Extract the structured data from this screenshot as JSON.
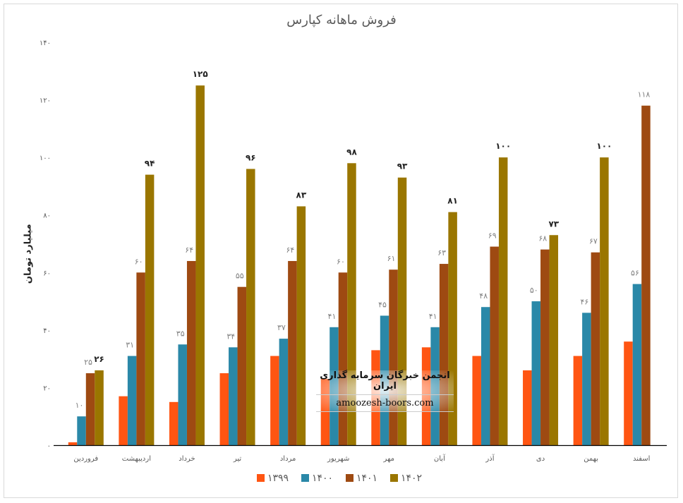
{
  "chart_data": {
    "type": "bar",
    "title": "فروش ماهانه کپارس",
    "xlabel": "",
    "ylabel": "میلیارد تومان",
    "ylim": [
      0,
      140
    ],
    "yticks": [
      0,
      20,
      40,
      60,
      80,
      100,
      120,
      140
    ],
    "grid": false,
    "legend_position": "bottom",
    "categories": [
      "فروردین",
      "اردیبهشت",
      "خرداد",
      "تیر",
      "مرداد",
      "شهریور",
      "مهر",
      "آبان",
      "آذر",
      "دی",
      "بهمن",
      "اسفند"
    ],
    "series": [
      {
        "name": "۱۳۹۹",
        "color": "#FF5512",
        "show_labels": false,
        "values": [
          1,
          17,
          15,
          25,
          31,
          23,
          33,
          34,
          31,
          26,
          31,
          36
        ]
      },
      {
        "name": "۱۴۰۰",
        "color": "#2A88A8",
        "show_labels": true,
        "label_bold": false,
        "values": [
          10,
          31,
          35,
          34,
          37,
          41,
          45,
          41,
          48,
          50,
          46,
          56
        ]
      },
      {
        "name": "۱۴۰۱",
        "color": "#9E4A12",
        "show_labels": true,
        "label_bold": false,
        "values": [
          25,
          60,
          64,
          55,
          64,
          60,
          61,
          63,
          69,
          68,
          67,
          118
        ]
      },
      {
        "name": "۱۴۰۲",
        "color": "#9A7600",
        "show_labels": true,
        "label_bold": true,
        "values": [
          26,
          94,
          125,
          96,
          83,
          98,
          93,
          81,
          100,
          73,
          100,
          null
        ]
      }
    ]
  },
  "watermark": {
    "name": "انجمن خبرگان سرمایه گذاری ایران",
    "site": "amoozesh-boors.com"
  }
}
